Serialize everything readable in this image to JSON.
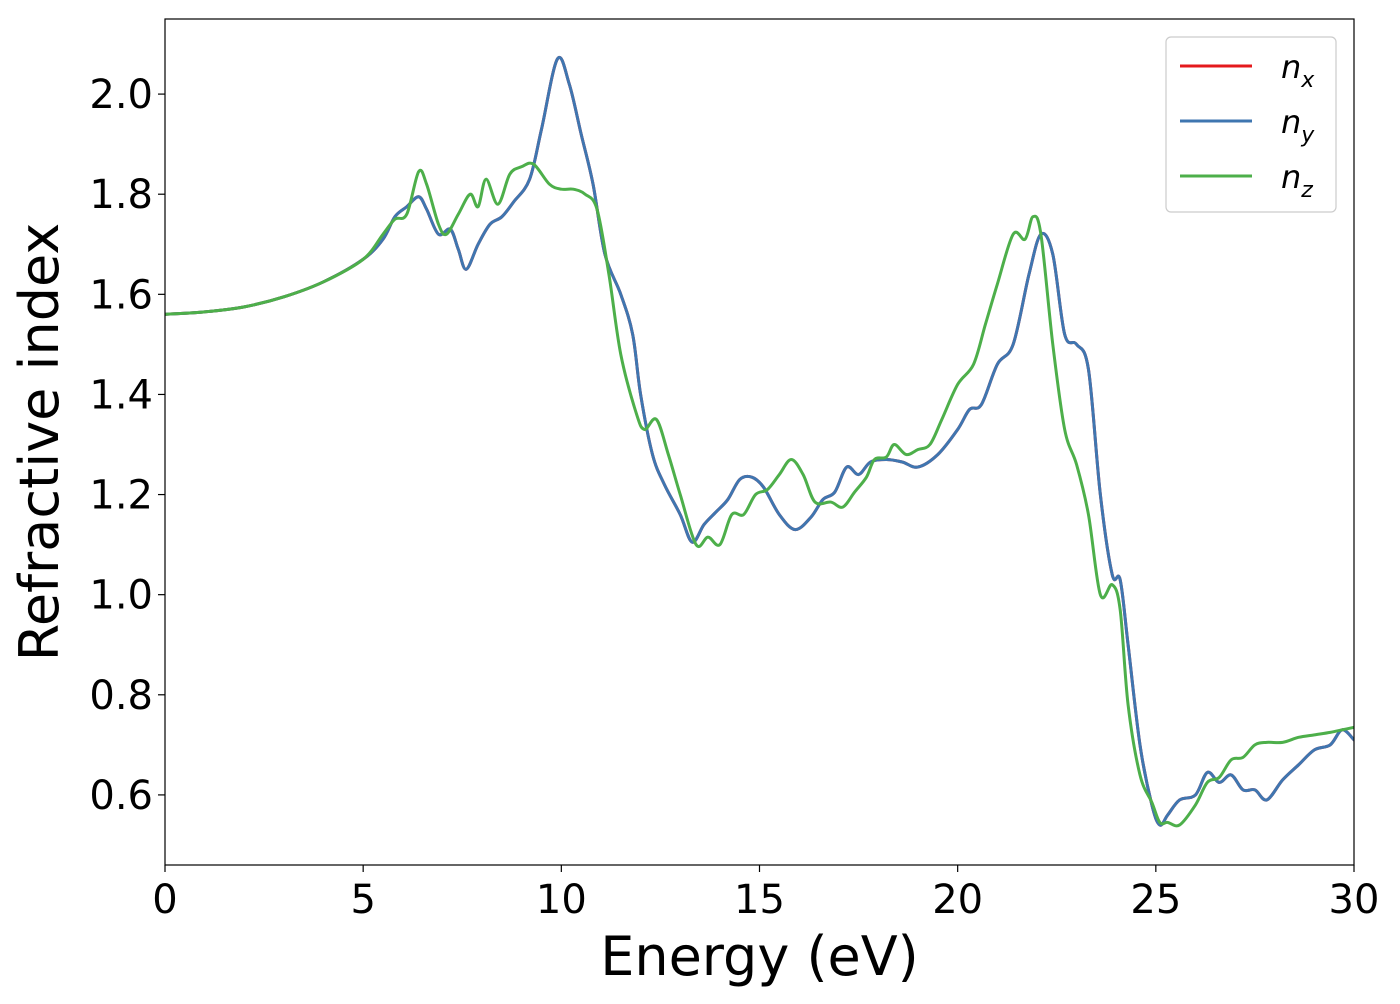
{
  "chart_data": {
    "type": "line",
    "title": "",
    "xlabel": "Energy (eV)",
    "ylabel": "Refractive index",
    "xlim": [
      0,
      30
    ],
    "ylim": [
      0.46,
      2.15
    ],
    "xticks": [
      0,
      5,
      10,
      15,
      20,
      25,
      30
    ],
    "yticks": [
      0.6,
      0.8,
      1.0,
      1.2,
      1.4,
      1.6,
      1.8,
      2.0
    ],
    "ytick_labels": [
      "0.6",
      "0.8",
      "1.0",
      "1.2",
      "1.4",
      "1.6",
      "1.8",
      "2.0"
    ],
    "grid": false,
    "legend": "top-right",
    "series": [
      {
        "name": "n_x",
        "label_base": "n",
        "label_sub": "x",
        "color": "#e41a1c",
        "points": [
          [
            0,
            1.56
          ],
          [
            1,
            1.565
          ],
          [
            2,
            1.575
          ],
          [
            3,
            1.595
          ],
          [
            4,
            1.625
          ],
          [
            5,
            1.67
          ],
          [
            5.5,
            1.71
          ],
          [
            5.8,
            1.755
          ],
          [
            6.1,
            1.775
          ],
          [
            6.4,
            1.795
          ],
          [
            6.6,
            1.77
          ],
          [
            6.9,
            1.72
          ],
          [
            7.2,
            1.73
          ],
          [
            7.4,
            1.69
          ],
          [
            7.6,
            1.65
          ],
          [
            7.9,
            1.7
          ],
          [
            8.2,
            1.74
          ],
          [
            8.5,
            1.755
          ],
          [
            8.8,
            1.785
          ],
          [
            9.2,
            1.83
          ],
          [
            9.5,
            1.93
          ],
          [
            9.9,
            2.07
          ],
          [
            10.2,
            2.02
          ],
          [
            10.5,
            1.92
          ],
          [
            10.8,
            1.82
          ],
          [
            11.1,
            1.68
          ],
          [
            11.5,
            1.6
          ],
          [
            11.8,
            1.52
          ],
          [
            12.0,
            1.4
          ],
          [
            12.3,
            1.28
          ],
          [
            12.6,
            1.22
          ],
          [
            13.0,
            1.16
          ],
          [
            13.3,
            1.105
          ],
          [
            13.6,
            1.14
          ],
          [
            13.9,
            1.165
          ],
          [
            14.2,
            1.19
          ],
          [
            14.5,
            1.23
          ],
          [
            14.8,
            1.235
          ],
          [
            15.1,
            1.215
          ],
          [
            15.5,
            1.16
          ],
          [
            15.9,
            1.13
          ],
          [
            16.3,
            1.155
          ],
          [
            16.6,
            1.19
          ],
          [
            16.9,
            1.205
          ],
          [
            17.2,
            1.255
          ],
          [
            17.5,
            1.24
          ],
          [
            17.8,
            1.265
          ],
          [
            18.2,
            1.27
          ],
          [
            18.6,
            1.265
          ],
          [
            19.0,
            1.255
          ],
          [
            19.5,
            1.28
          ],
          [
            20.0,
            1.33
          ],
          [
            20.3,
            1.37
          ],
          [
            20.6,
            1.38
          ],
          [
            21.0,
            1.46
          ],
          [
            21.4,
            1.5
          ],
          [
            21.8,
            1.64
          ],
          [
            22.1,
            1.72
          ],
          [
            22.4,
            1.68
          ],
          [
            22.7,
            1.52
          ],
          [
            23.0,
            1.5
          ],
          [
            23.3,
            1.45
          ],
          [
            23.6,
            1.2
          ],
          [
            23.9,
            1.04
          ],
          [
            24.1,
            1.03
          ],
          [
            24.3,
            0.9
          ],
          [
            24.6,
            0.7
          ],
          [
            24.9,
            0.58
          ],
          [
            25.1,
            0.54
          ],
          [
            25.3,
            0.56
          ],
          [
            25.6,
            0.59
          ],
          [
            26.0,
            0.6
          ],
          [
            26.3,
            0.645
          ],
          [
            26.6,
            0.625
          ],
          [
            26.9,
            0.64
          ],
          [
            27.2,
            0.61
          ],
          [
            27.5,
            0.61
          ],
          [
            27.8,
            0.59
          ],
          [
            28.2,
            0.63
          ],
          [
            28.6,
            0.66
          ],
          [
            29.0,
            0.69
          ],
          [
            29.4,
            0.7
          ],
          [
            29.7,
            0.73
          ],
          [
            30.0,
            0.71
          ]
        ]
      },
      {
        "name": "n_y",
        "label_base": "n",
        "label_sub": "y",
        "color": "#3f76b0",
        "points": [
          [
            0,
            1.56
          ],
          [
            1,
            1.565
          ],
          [
            2,
            1.575
          ],
          [
            3,
            1.595
          ],
          [
            4,
            1.625
          ],
          [
            5,
            1.67
          ],
          [
            5.5,
            1.71
          ],
          [
            5.8,
            1.755
          ],
          [
            6.1,
            1.775
          ],
          [
            6.4,
            1.795
          ],
          [
            6.6,
            1.77
          ],
          [
            6.9,
            1.72
          ],
          [
            7.2,
            1.73
          ],
          [
            7.4,
            1.69
          ],
          [
            7.6,
            1.65
          ],
          [
            7.9,
            1.7
          ],
          [
            8.2,
            1.74
          ],
          [
            8.5,
            1.755
          ],
          [
            8.8,
            1.785
          ],
          [
            9.2,
            1.83
          ],
          [
            9.5,
            1.93
          ],
          [
            9.9,
            2.07
          ],
          [
            10.2,
            2.02
          ],
          [
            10.5,
            1.92
          ],
          [
            10.8,
            1.82
          ],
          [
            11.1,
            1.68
          ],
          [
            11.5,
            1.6
          ],
          [
            11.8,
            1.52
          ],
          [
            12.0,
            1.4
          ],
          [
            12.3,
            1.28
          ],
          [
            12.6,
            1.22
          ],
          [
            13.0,
            1.16
          ],
          [
            13.3,
            1.105
          ],
          [
            13.6,
            1.14
          ],
          [
            13.9,
            1.165
          ],
          [
            14.2,
            1.19
          ],
          [
            14.5,
            1.23
          ],
          [
            14.8,
            1.235
          ],
          [
            15.1,
            1.215
          ],
          [
            15.5,
            1.16
          ],
          [
            15.9,
            1.13
          ],
          [
            16.3,
            1.155
          ],
          [
            16.6,
            1.19
          ],
          [
            16.9,
            1.205
          ],
          [
            17.2,
            1.255
          ],
          [
            17.5,
            1.24
          ],
          [
            17.8,
            1.265
          ],
          [
            18.2,
            1.27
          ],
          [
            18.6,
            1.265
          ],
          [
            19.0,
            1.255
          ],
          [
            19.5,
            1.28
          ],
          [
            20.0,
            1.33
          ],
          [
            20.3,
            1.37
          ],
          [
            20.6,
            1.38
          ],
          [
            21.0,
            1.46
          ],
          [
            21.4,
            1.5
          ],
          [
            21.8,
            1.64
          ],
          [
            22.1,
            1.72
          ],
          [
            22.4,
            1.68
          ],
          [
            22.7,
            1.52
          ],
          [
            23.0,
            1.5
          ],
          [
            23.3,
            1.45
          ],
          [
            23.6,
            1.2
          ],
          [
            23.9,
            1.04
          ],
          [
            24.1,
            1.03
          ],
          [
            24.3,
            0.9
          ],
          [
            24.6,
            0.7
          ],
          [
            24.9,
            0.58
          ],
          [
            25.1,
            0.54
          ],
          [
            25.3,
            0.56
          ],
          [
            25.6,
            0.59
          ],
          [
            26.0,
            0.6
          ],
          [
            26.3,
            0.645
          ],
          [
            26.6,
            0.625
          ],
          [
            26.9,
            0.64
          ],
          [
            27.2,
            0.61
          ],
          [
            27.5,
            0.61
          ],
          [
            27.8,
            0.59
          ],
          [
            28.2,
            0.63
          ],
          [
            28.6,
            0.66
          ],
          [
            29.0,
            0.69
          ],
          [
            29.4,
            0.7
          ],
          [
            29.7,
            0.73
          ],
          [
            30.0,
            0.71
          ]
        ]
      },
      {
        "name": "n_z",
        "label_base": "n",
        "label_sub": "z",
        "color": "#4daf4a",
        "points": [
          [
            0,
            1.56
          ],
          [
            1,
            1.565
          ],
          [
            2,
            1.575
          ],
          [
            3,
            1.595
          ],
          [
            4,
            1.625
          ],
          [
            5,
            1.67
          ],
          [
            5.5,
            1.72
          ],
          [
            5.8,
            1.75
          ],
          [
            6.1,
            1.76
          ],
          [
            6.4,
            1.845
          ],
          [
            6.6,
            1.82
          ],
          [
            6.9,
            1.74
          ],
          [
            7.1,
            1.72
          ],
          [
            7.4,
            1.76
          ],
          [
            7.7,
            1.8
          ],
          [
            7.9,
            1.775
          ],
          [
            8.1,
            1.83
          ],
          [
            8.4,
            1.78
          ],
          [
            8.7,
            1.84
          ],
          [
            9.0,
            1.855
          ],
          [
            9.3,
            1.86
          ],
          [
            9.7,
            1.82
          ],
          [
            10.0,
            1.81
          ],
          [
            10.3,
            1.81
          ],
          [
            10.6,
            1.8
          ],
          [
            10.9,
            1.77
          ],
          [
            11.2,
            1.64
          ],
          [
            11.5,
            1.48
          ],
          [
            11.9,
            1.36
          ],
          [
            12.1,
            1.33
          ],
          [
            12.4,
            1.35
          ],
          [
            12.7,
            1.28
          ],
          [
            13.0,
            1.2
          ],
          [
            13.4,
            1.1
          ],
          [
            13.7,
            1.115
          ],
          [
            14.0,
            1.1
          ],
          [
            14.3,
            1.16
          ],
          [
            14.6,
            1.16
          ],
          [
            14.9,
            1.2
          ],
          [
            15.2,
            1.21
          ],
          [
            15.5,
            1.24
          ],
          [
            15.8,
            1.27
          ],
          [
            16.1,
            1.24
          ],
          [
            16.4,
            1.185
          ],
          [
            16.8,
            1.185
          ],
          [
            17.1,
            1.175
          ],
          [
            17.4,
            1.205
          ],
          [
            17.7,
            1.235
          ],
          [
            17.9,
            1.27
          ],
          [
            18.2,
            1.275
          ],
          [
            18.4,
            1.3
          ],
          [
            18.7,
            1.28
          ],
          [
            19.0,
            1.29
          ],
          [
            19.3,
            1.3
          ],
          [
            19.6,
            1.35
          ],
          [
            20.0,
            1.42
          ],
          [
            20.4,
            1.46
          ],
          [
            20.7,
            1.54
          ],
          [
            21.0,
            1.62
          ],
          [
            21.4,
            1.72
          ],
          [
            21.7,
            1.71
          ],
          [
            21.9,
            1.755
          ],
          [
            22.1,
            1.72
          ],
          [
            22.4,
            1.5
          ],
          [
            22.7,
            1.33
          ],
          [
            23.0,
            1.26
          ],
          [
            23.3,
            1.16
          ],
          [
            23.6,
            1.0
          ],
          [
            23.9,
            1.02
          ],
          [
            24.1,
            0.97
          ],
          [
            24.3,
            0.78
          ],
          [
            24.6,
            0.64
          ],
          [
            24.9,
            0.585
          ],
          [
            25.1,
            0.545
          ],
          [
            25.3,
            0.545
          ],
          [
            25.6,
            0.54
          ],
          [
            26.0,
            0.58
          ],
          [
            26.3,
            0.625
          ],
          [
            26.6,
            0.635
          ],
          [
            26.9,
            0.67
          ],
          [
            27.2,
            0.675
          ],
          [
            27.5,
            0.7
          ],
          [
            27.8,
            0.705
          ],
          [
            28.2,
            0.705
          ],
          [
            28.6,
            0.715
          ],
          [
            29.0,
            0.72
          ],
          [
            29.4,
            0.725
          ],
          [
            29.7,
            0.73
          ],
          [
            30.0,
            0.735
          ]
        ]
      }
    ]
  }
}
